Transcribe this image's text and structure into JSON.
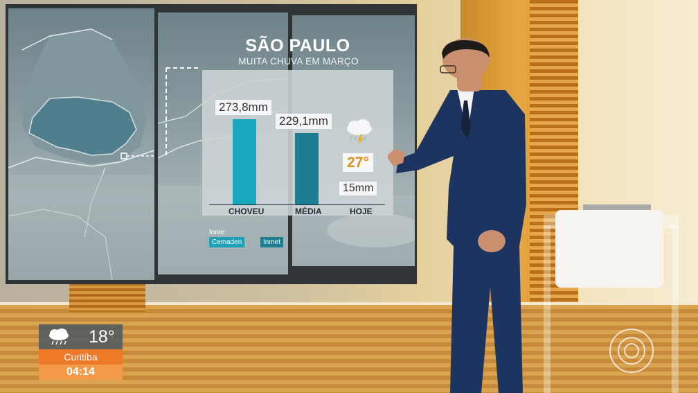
{
  "graphic": {
    "title": "SÃO PAULO",
    "subtitle": "MUITA CHUVA EM MARÇO",
    "chart_data": {
      "type": "bar",
      "categories": [
        "CHOVEU",
        "MÉDIA",
        "HOJE"
      ],
      "values": [
        273.8,
        229.1,
        15
      ],
      "value_labels": [
        "273,8mm",
        "229,1mm",
        "15mm"
      ],
      "ylim": [
        0,
        300
      ],
      "colors": [
        "#19a7c0",
        "#1d7d92"
      ]
    },
    "today": {
      "temperature": "27°",
      "icon": "cloud-lightning-icon"
    },
    "source": {
      "label": "fonte:",
      "items": [
        "Cemaden",
        "Inmet"
      ]
    }
  },
  "weather_widget": {
    "icon": "cloud-rain-icon",
    "temperature": "18°",
    "city": "Curitiba",
    "time": "04:14",
    "colors": {
      "city": "#ef7a2a",
      "time": "#f39a49"
    }
  },
  "logo": {
    "icon": "globo-logo-icon"
  }
}
